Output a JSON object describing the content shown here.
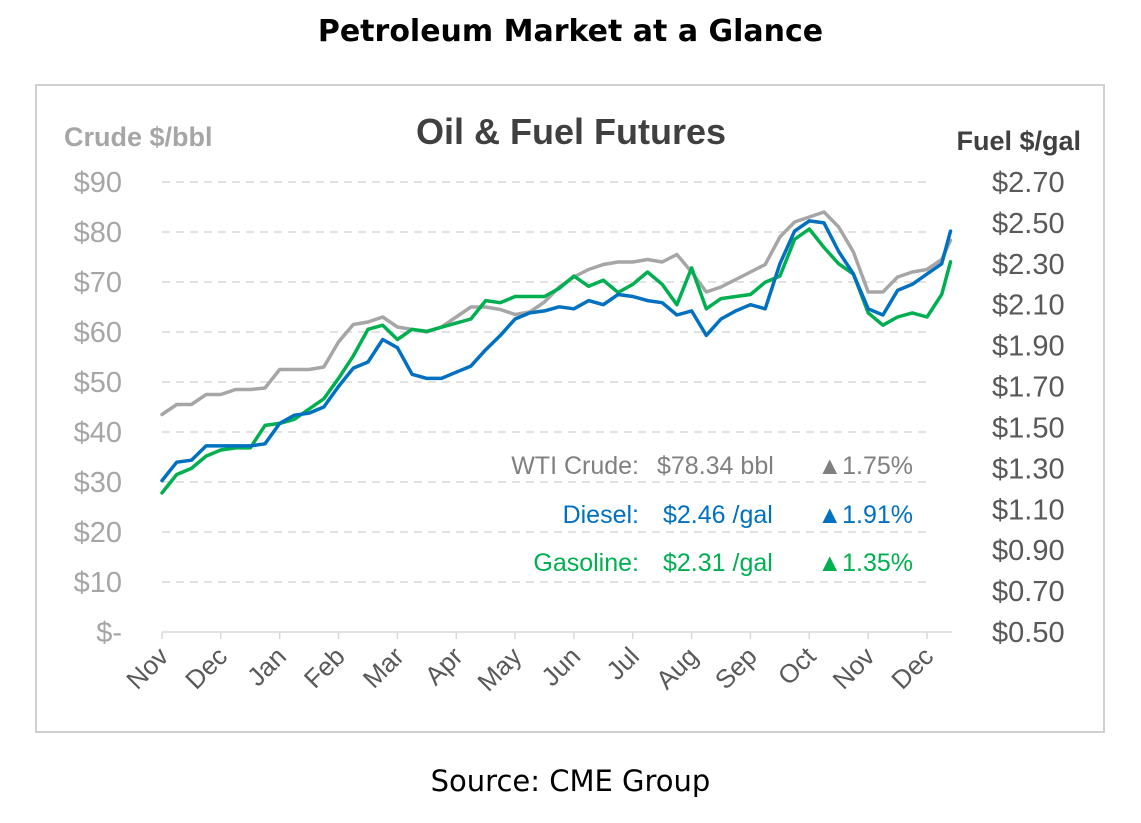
{
  "page": {
    "title": "Petroleum Market at a Glance",
    "source": "Source: CME Group"
  },
  "colors": {
    "crude": "#a6a6a6",
    "diesel": "#0070c0",
    "gasoline": "#00b050",
    "grid": "#d9d9d9",
    "axis_text": "#a6a6a6",
    "title_text": "#404040"
  },
  "chart_data": {
    "type": "line",
    "title": "Oil & Fuel Futures",
    "y_left_label": "Crude $/bbl",
    "y_right_label": "Fuel $/gal",
    "y_left_ticks": [
      "$-",
      "$10",
      "$20",
      "$30",
      "$40",
      "$50",
      "$60",
      "$70",
      "$80",
      "$90"
    ],
    "y_right_ticks": [
      "$0.50",
      "$0.70",
      "$0.90",
      "$1.10",
      "$1.30",
      "$1.50",
      "$1.70",
      "$1.90",
      "$2.10",
      "$2.30",
      "$2.50",
      "$2.70"
    ],
    "y_left_range": [
      0,
      90
    ],
    "y_right_range": [
      0.5,
      2.7
    ],
    "x_labels": [
      "Nov",
      "Dec",
      "Jan",
      "Feb",
      "Mar",
      "Apr",
      "May",
      "Jun",
      "Jul",
      "Aug",
      "Sep",
      "Oct",
      "Nov",
      "Dec"
    ],
    "grid": "horizontal dashed",
    "series": [
      {
        "name": "WTI Crude",
        "axis": "left",
        "x": [
          0,
          0.25,
          0.5,
          0.75,
          1,
          1.25,
          1.5,
          1.75,
          2,
          2.25,
          2.5,
          2.75,
          3,
          3.25,
          3.5,
          3.75,
          4,
          4.25,
          4.5,
          4.75,
          5,
          5.25,
          5.5,
          5.75,
          6,
          6.25,
          6.5,
          6.75,
          7,
          7.25,
          7.5,
          7.75,
          8,
          8.25,
          8.5,
          8.75,
          9,
          9.25,
          9.5,
          9.75,
          10,
          10.25,
          10.5,
          10.75,
          11,
          11.25,
          11.5,
          11.75,
          12,
          12.25,
          12.5,
          12.75,
          13,
          13.25,
          13.4
        ],
        "y": [
          43.5,
          45.5,
          45.5,
          47.5,
          47.5,
          48.5,
          48.5,
          48.8,
          52.5,
          52.5,
          52.5,
          53,
          58,
          61.5,
          62,
          63,
          61,
          60.5,
          60,
          61,
          63,
          65,
          65,
          64.5,
          63.5,
          64,
          66,
          69,
          71,
          72.5,
          73.5,
          74,
          74,
          74.5,
          74,
          75.5,
          72,
          68,
          69,
          70.5,
          72,
          73.5,
          79,
          82,
          83,
          84,
          81,
          76,
          68,
          68,
          71,
          72,
          72.5,
          74.5,
          78.34
        ]
      },
      {
        "name": "Diesel",
        "axis": "right",
        "x": [
          0,
          0.25,
          0.5,
          0.75,
          1,
          1.25,
          1.5,
          1.75,
          2,
          2.25,
          2.5,
          2.75,
          3,
          3.25,
          3.5,
          3.75,
          4,
          4.25,
          4.5,
          4.75,
          5,
          5.25,
          5.5,
          5.75,
          6,
          6.25,
          6.5,
          6.75,
          7,
          7.25,
          7.5,
          7.75,
          8,
          8.25,
          8.5,
          8.75,
          9,
          9.25,
          9.5,
          9.75,
          10,
          10.25,
          10.5,
          10.75,
          11,
          11.25,
          11.5,
          11.75,
          12,
          12.25,
          12.5,
          12.75,
          13,
          13.25,
          13.4
        ],
        "y": [
          1.24,
          1.33,
          1.34,
          1.41,
          1.41,
          1.41,
          1.41,
          1.42,
          1.52,
          1.56,
          1.57,
          1.6,
          1.7,
          1.79,
          1.82,
          1.93,
          1.89,
          1.76,
          1.74,
          1.74,
          1.77,
          1.8,
          1.88,
          1.95,
          2.03,
          2.06,
          2.07,
          2.09,
          2.08,
          2.12,
          2.1,
          2.15,
          2.14,
          2.12,
          2.11,
          2.05,
          2.07,
          1.95,
          2.03,
          2.07,
          2.1,
          2.08,
          2.3,
          2.46,
          2.51,
          2.5,
          2.36,
          2.25,
          2.08,
          2.05,
          2.17,
          2.2,
          2.25,
          2.3,
          2.46
        ]
      },
      {
        "name": "Gasoline",
        "axis": "right",
        "x": [
          0,
          0.25,
          0.5,
          0.75,
          1,
          1.25,
          1.5,
          1.75,
          2,
          2.25,
          2.5,
          2.75,
          3,
          3.25,
          3.5,
          3.75,
          4,
          4.25,
          4.5,
          4.75,
          5,
          5.25,
          5.5,
          5.75,
          6,
          6.25,
          6.5,
          6.75,
          7,
          7.25,
          7.5,
          7.75,
          8,
          8.25,
          8.5,
          8.75,
          9,
          9.25,
          9.5,
          9.75,
          10,
          10.25,
          10.5,
          10.75,
          11,
          11.25,
          11.5,
          11.75,
          12,
          12.25,
          12.5,
          12.75,
          13,
          13.25,
          13.4
        ],
        "y": [
          1.18,
          1.27,
          1.3,
          1.36,
          1.39,
          1.4,
          1.4,
          1.51,
          1.52,
          1.54,
          1.59,
          1.64,
          1.74,
          1.85,
          1.98,
          2.0,
          1.93,
          1.98,
          1.97,
          1.99,
          2.01,
          2.03,
          2.12,
          2.11,
          2.14,
          2.14,
          2.14,
          2.18,
          2.24,
          2.19,
          2.22,
          2.16,
          2.2,
          2.26,
          2.2,
          2.1,
          2.28,
          2.08,
          2.13,
          2.14,
          2.15,
          2.21,
          2.24,
          2.42,
          2.47,
          2.38,
          2.3,
          2.25,
          2.06,
          2.0,
          2.04,
          2.06,
          2.04,
          2.15,
          2.31
        ]
      }
    ],
    "annotations": [
      {
        "label": "WTI Crude:",
        "value": "$78.34 bbl",
        "change": "▲1.75%",
        "color": "#808080"
      },
      {
        "label": "Diesel:",
        "value": "$2.46 /gal",
        "change": "▲1.91%",
        "color": "#0070c0"
      },
      {
        "label": "Gasoline:",
        "value": "$2.31 /gal",
        "change": "▲1.35%",
        "color": "#00b050"
      }
    ]
  }
}
